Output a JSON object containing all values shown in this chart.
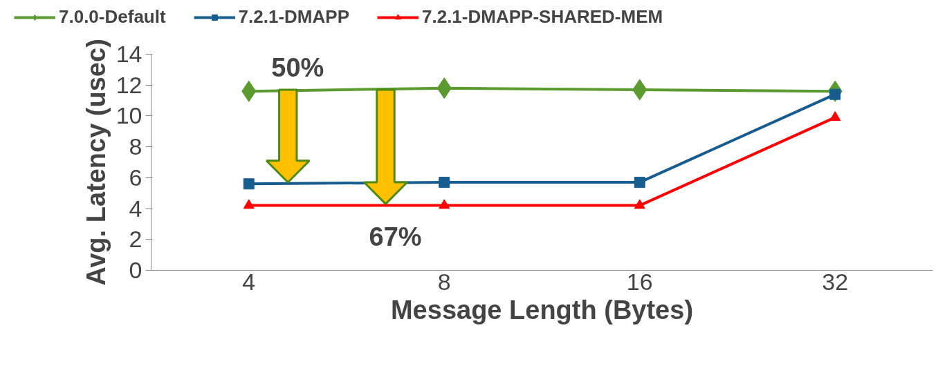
{
  "chart_data": {
    "type": "line",
    "xlabel": "Message Length (Bytes)",
    "ylabel": "Avg. Latency (usec)",
    "categories": [
      "4",
      "8",
      "16",
      "32"
    ],
    "ylim": [
      0,
      14
    ],
    "yticks": [
      0,
      2,
      4,
      6,
      8,
      10,
      12,
      14
    ],
    "grid": false,
    "legend": "top",
    "annotations": [
      "50%",
      {
        "text": "67%",
        "y": 4.2
      }
    ],
    "series": [
      {
        "name": "7.0.0-Default",
        "color": "#5b9a2e",
        "marker": "diamond",
        "values": [
          11.6,
          11.8,
          11.7,
          11.6
        ]
      },
      {
        "name": "7.2.1-DMAPP",
        "color": "#175c8e",
        "marker": "square",
        "values": [
          5.6,
          5.7,
          5.7,
          11.4
        ]
      },
      {
        "name": "7.2.1-DMAPP-SHARED-MEM",
        "color": "#ff0000",
        "marker": "triangle",
        "values": [
          4.2,
          4.2,
          4.2,
          9.9
        ]
      }
    ]
  }
}
